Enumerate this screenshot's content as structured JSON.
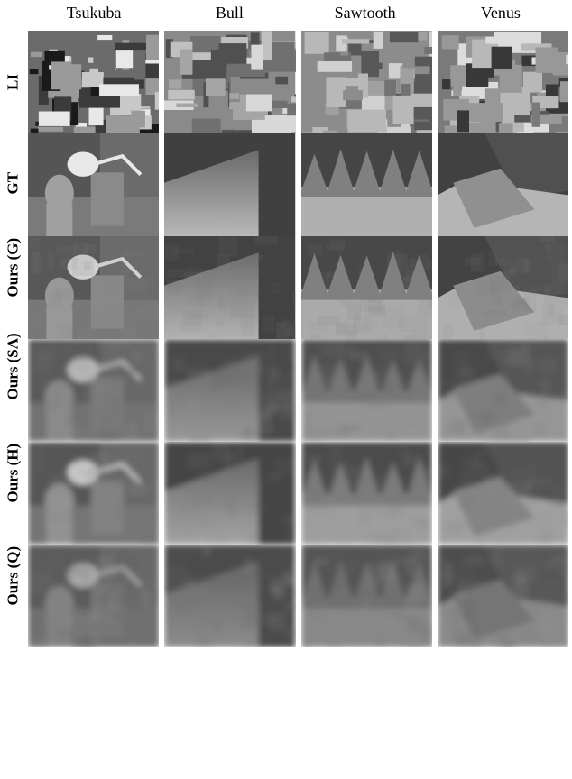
{
  "columns": [
    "Tsukuba",
    "Bull",
    "Sawtooth",
    "Venus"
  ],
  "rows": [
    "LI",
    "GT",
    "Ours (G)",
    "Ours (SA)",
    "Ours (H)",
    "Ours (Q)"
  ],
  "cell_bg": "#808080",
  "text_color": "#000000",
  "cells": {
    "LI": {
      "Tsukuba": {
        "type": "photo",
        "palette": [
          "#1a1a1a",
          "#3b3b3b",
          "#6b6b6b",
          "#9a9a9a",
          "#c8c8c8",
          "#e8e8e8"
        ]
      },
      "Bull": {
        "type": "photo",
        "palette": [
          "#505050",
          "#707070",
          "#8a8a8a",
          "#a5a5a5",
          "#c0c0c0",
          "#d8d8d8"
        ]
      },
      "Sawtooth": {
        "type": "photo",
        "palette": [
          "#585858",
          "#727272",
          "#8c8c8c",
          "#a0a0a0",
          "#b8b8b8",
          "#d0d0d0"
        ]
      },
      "Venus": {
        "type": "photo",
        "palette": [
          "#383838",
          "#585858",
          "#7a7a7a",
          "#989898",
          "#b8b8b8",
          "#dcdcdc"
        ]
      }
    },
    "GT": {
      "Tsukuba": {
        "type": "depth-lamp",
        "bg": "#555555",
        "mid": "#7a7a7a",
        "lamp": "#e8e8e8",
        "head": "#a0a0a0",
        "stand": "#8a8a8a"
      },
      "Bull": {
        "type": "depth-corner",
        "dark": "#404040",
        "light_top": "#6a6a6a",
        "light_bottom": "#b8b8b8"
      },
      "Sawtooth": {
        "type": "depth-sawtooth",
        "dark": "#454545",
        "mid": "#808080",
        "light": "#b0b0b0"
      },
      "Venus": {
        "type": "depth-venus",
        "dark": "#414141",
        "plane": "#505050",
        "fold": "#909090",
        "floor": "#b5b5b5"
      }
    },
    "Ours (G)": {
      "Tsukuba": {
        "type": "depth-lamp-noisy",
        "bg": "#585858",
        "mid": "#787878",
        "lamp": "#d0d0d0",
        "head": "#989898",
        "stand": "#888888",
        "noise": 0.15
      },
      "Bull": {
        "type": "depth-corner-noisy",
        "dark": "#424242",
        "light_top": "#6c6c6c",
        "light_bottom": "#b2b2b2",
        "noise": 0.12
      },
      "Sawtooth": {
        "type": "depth-sawtooth-noisy",
        "dark": "#484848",
        "mid": "#808080",
        "light": "#aaaaaa",
        "noise": 0.15
      },
      "Venus": {
        "type": "depth-venus-noisy",
        "dark": "#434343",
        "plane": "#525252",
        "fold": "#8c8c8c",
        "floor": "#afafaf",
        "noise": 0.15
      }
    },
    "Ours (SA)": {
      "Tsukuba": {
        "type": "depth-lamp-blur",
        "bg": "#5a5a5a",
        "mid": "#727272",
        "lamp": "#b8b8b8",
        "head": "#8a8a8a",
        "stand": "#7a7a7a",
        "noise": 0.4
      },
      "Bull": {
        "type": "depth-corner-blur",
        "dark": "#484848",
        "light_top": "#686868",
        "light_bottom": "#989898",
        "noise": 0.4
      },
      "Sawtooth": {
        "type": "depth-sawtooth-blur",
        "dark": "#505050",
        "mid": "#767676",
        "light": "#949494",
        "noise": 0.4
      },
      "Venus": {
        "type": "depth-venus-blur",
        "dark": "#4a4a4a",
        "plane": "#565656",
        "fold": "#7e7e7e",
        "floor": "#969696",
        "noise": 0.4
      }
    },
    "Ours (H)": {
      "Tsukuba": {
        "type": "depth-lamp-blur",
        "bg": "#565656",
        "mid": "#747474",
        "lamp": "#c8c8c8",
        "head": "#929292",
        "stand": "#828282",
        "noise": 0.28
      },
      "Bull": {
        "type": "depth-corner-blur",
        "dark": "#454545",
        "light_top": "#6a6a6a",
        "light_bottom": "#a4a4a4",
        "noise": 0.3
      },
      "Sawtooth": {
        "type": "depth-sawtooth-blur",
        "dark": "#4c4c4c",
        "mid": "#7a7a7a",
        "light": "#9e9e9e",
        "noise": 0.3
      },
      "Venus": {
        "type": "depth-venus-blur",
        "dark": "#474747",
        "plane": "#535353",
        "fold": "#848484",
        "floor": "#a0a0a0",
        "noise": 0.3
      }
    },
    "Ours (Q)": {
      "Tsukuba": {
        "type": "depth-lamp-blur",
        "bg": "#5c5c5c",
        "mid": "#707070",
        "lamp": "#a8a8a8",
        "head": "#828282",
        "stand": "#767676",
        "noise": 0.5
      },
      "Bull": {
        "type": "depth-corner-blur",
        "dark": "#4c4c4c",
        "light_top": "#656565",
        "light_bottom": "#8c8c8c",
        "noise": 0.5
      },
      "Sawtooth": {
        "type": "depth-sawtooth-blur",
        "dark": "#545454",
        "mid": "#707070",
        "light": "#888888",
        "noise": 0.5
      },
      "Venus": {
        "type": "depth-venus-blur",
        "dark": "#4e4e4e",
        "plane": "#585858",
        "fold": "#747474",
        "floor": "#8a8a8a",
        "noise": 0.5
      }
    }
  }
}
